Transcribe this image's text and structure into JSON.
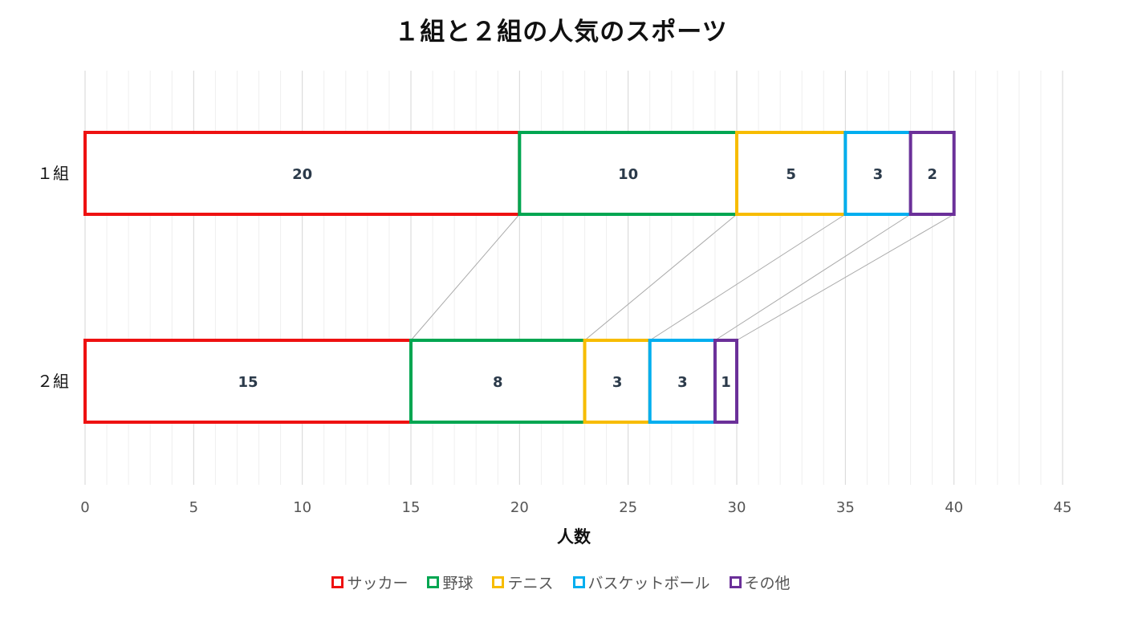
{
  "chart_data": {
    "type": "bar",
    "orientation": "horizontal",
    "stacked": true,
    "title": "１組と２組の人気のスポーツ",
    "xlabel": "人数",
    "ylabel": "",
    "xlim": [
      0,
      45
    ],
    "x_ticks": [
      0,
      5,
      10,
      15,
      20,
      25,
      30,
      35,
      40,
      45
    ],
    "categories": [
      "１組",
      "２組"
    ],
    "series": [
      {
        "name": "サッカー",
        "color": "#ee1111",
        "values": [
          20,
          15
        ]
      },
      {
        "name": "野球",
        "color": "#00a651",
        "values": [
          10,
          8
        ]
      },
      {
        "name": "テニス",
        "color": "#f7bc00",
        "values": [
          5,
          3
        ]
      },
      {
        "name": "バスケットボール",
        "color": "#00aeef",
        "values": [
          3,
          3
        ]
      },
      {
        "name": "その他",
        "color": "#6b3099",
        "values": [
          2,
          1
        ]
      }
    ],
    "grid": true,
    "legend_position": "bottom",
    "connector_lines": true
  }
}
